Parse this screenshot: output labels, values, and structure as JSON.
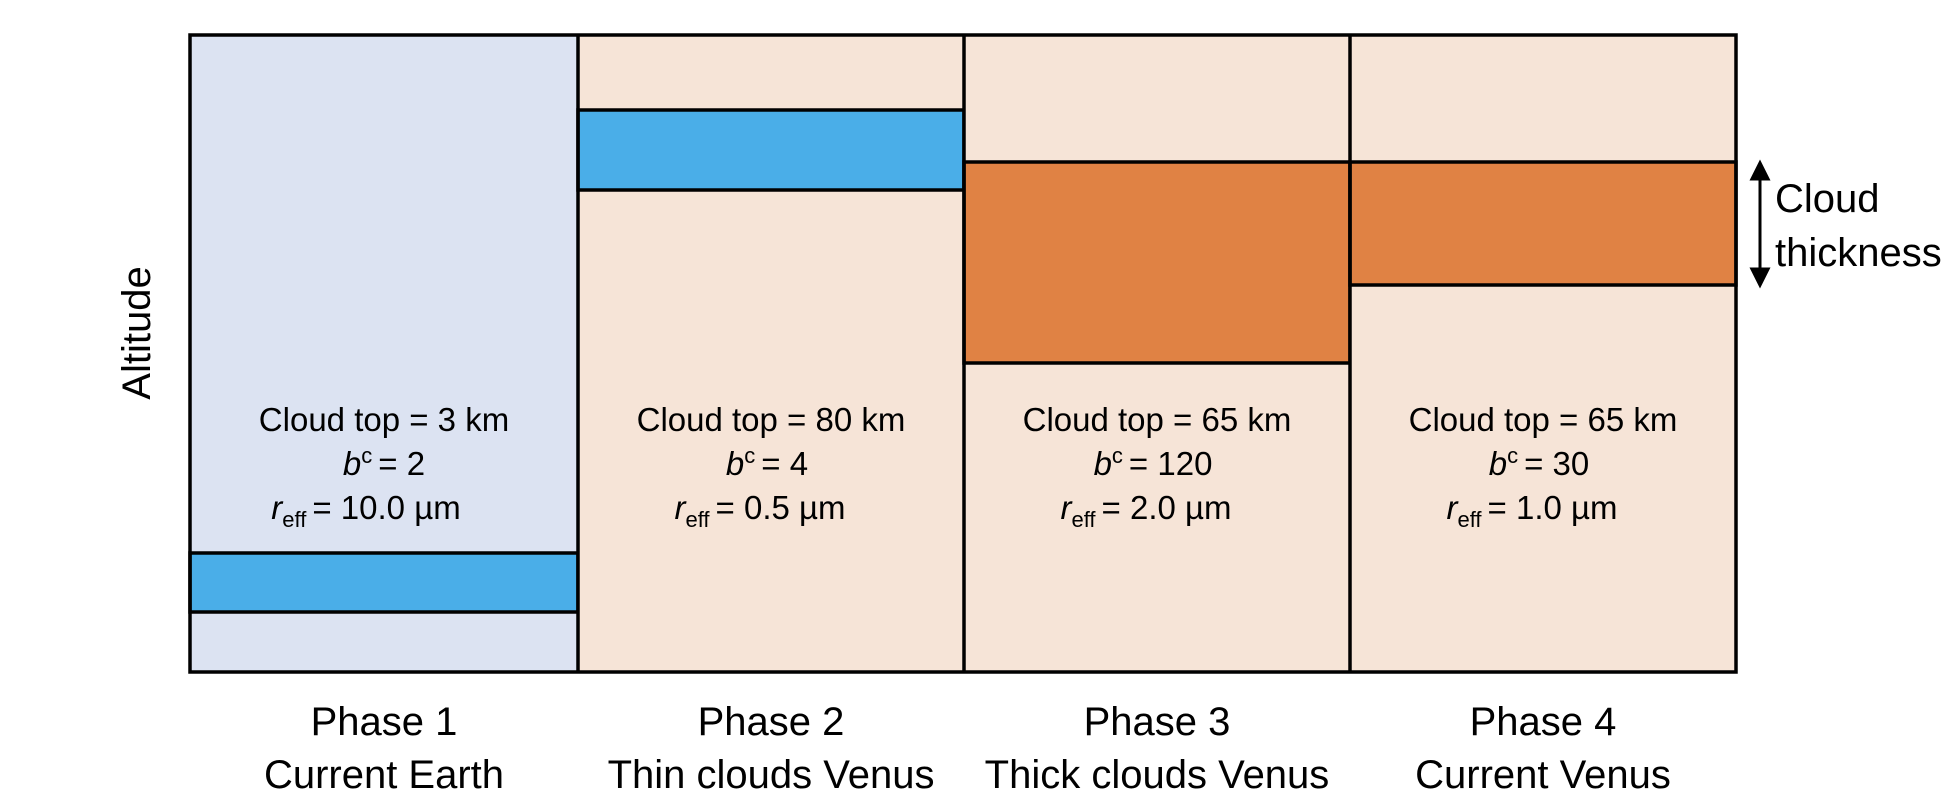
{
  "axis": {
    "ylabel": "Altitude"
  },
  "colors": {
    "earth_bg": "#dce3f2",
    "venus_bg": "#f6e4d7",
    "thin_cloud": "#4aaee8",
    "thick_cloud": "#e08244",
    "border": "#000000"
  },
  "cloud_thickness_label": [
    "Cloud",
    "thickness"
  ],
  "phases": [
    {
      "title": "Phase 1",
      "subtitle": "Current Earth",
      "background": "earth",
      "cloud_color": "thin",
      "cloud_top": "Cloud top = 3 km",
      "b_c_value": "= 2",
      "r_eff_value": "= 10.0 µm"
    },
    {
      "title": "Phase 2",
      "subtitle": "Thin clouds Venus",
      "background": "venus",
      "cloud_color": "thin",
      "cloud_top": "Cloud top = 80 km",
      "b_c_value": "= 4",
      "r_eff_value": "= 0.5 µm"
    },
    {
      "title": "Phase 3",
      "subtitle": "Thick clouds Venus",
      "background": "venus",
      "cloud_color": "thick",
      "cloud_top": "Cloud top = 65 km",
      "b_c_value": "= 120",
      "r_eff_value": "= 2.0 µm"
    },
    {
      "title": "Phase 4",
      "subtitle": "Current Venus",
      "background": "venus",
      "cloud_color": "thick",
      "cloud_top": "Cloud top = 65 km",
      "b_c_value": "= 30",
      "r_eff_value": "= 1.0 µm"
    }
  ]
}
